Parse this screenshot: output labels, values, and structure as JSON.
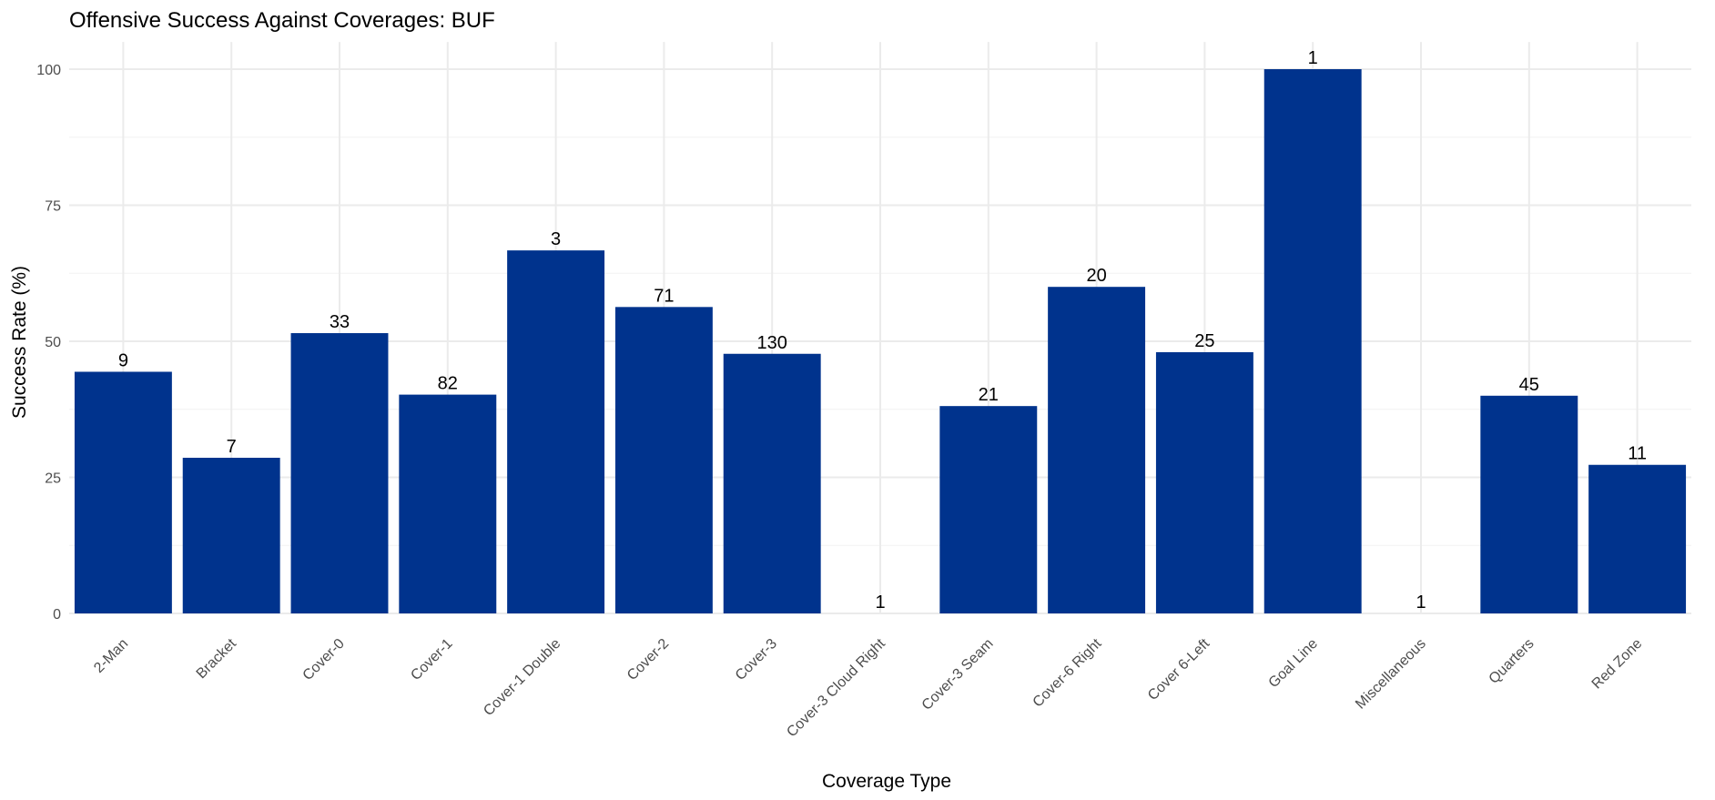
{
  "chart_data": {
    "type": "bar",
    "title": "Offensive Success Against Coverages: BUF",
    "xlabel": "Coverage Type",
    "ylabel": "Success Rate (%)",
    "ylim": [
      0,
      105
    ],
    "yticks": [
      "0",
      "25",
      "50",
      "75",
      "100"
    ],
    "grid": true,
    "bar_color": "#00338D",
    "categories": [
      "2-Man",
      "Bracket",
      "Cover-0",
      "Cover-1",
      "Cover-1 Double",
      "Cover-2",
      "Cover-3",
      "Cover-3 Cloud Right",
      "Cover-3 Seam",
      "Cover-6 Right",
      "Cover 6-Left",
      "Goal Line",
      "Miscellaneous",
      "Quarters",
      "Red Zone"
    ],
    "values": [
      44.4,
      28.6,
      51.5,
      40.2,
      66.7,
      56.3,
      47.7,
      0,
      38.1,
      60.0,
      48.0,
      100,
      0,
      40.0,
      27.3
    ],
    "bar_labels": [
      "9",
      "7",
      "33",
      "82",
      "3",
      "71",
      "130",
      "1",
      "21",
      "20",
      "25",
      "1",
      "1",
      "45",
      "11"
    ]
  }
}
